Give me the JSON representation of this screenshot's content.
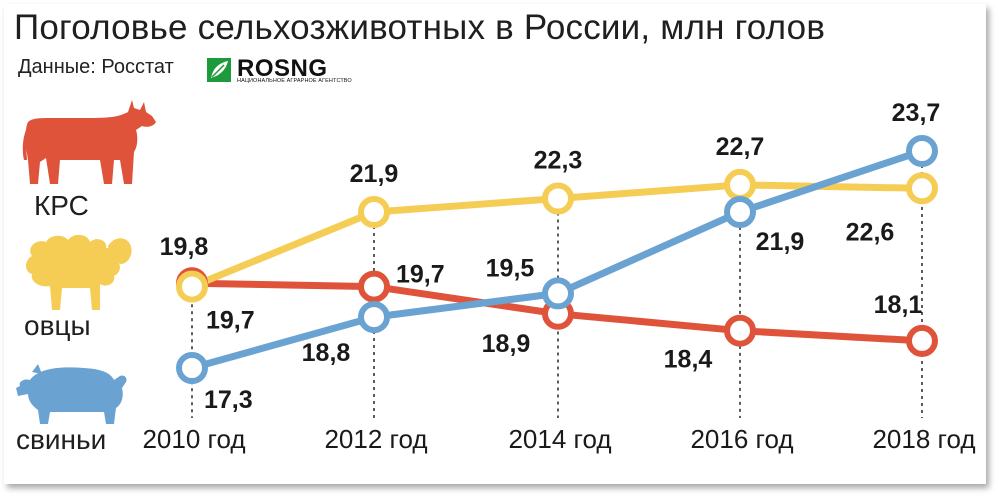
{
  "title": "Поголовье сельхозживотных в России, млн голов",
  "source": "Данные: Росстат",
  "logo": {
    "name": "ROSNG",
    "subtitle": "НАЦИОНАЛЬНОЕ АГРАРНОЕ АГЕНТСТВО"
  },
  "colors": {
    "krs": "#e0533b",
    "ovtsy": "#f5cd55",
    "svini": "#6aa3d2"
  },
  "chart_data": {
    "type": "line",
    "title": "Поголовье сельхозживотных в России, млн голов",
    "categories": [
      "2010 год",
      "2012 год",
      "2014 год",
      "2016 год",
      "2018 год"
    ],
    "ylim": [
      17,
      24
    ],
    "grid": false,
    "legend": "left (animal icons)",
    "series": [
      {
        "name": "КРС",
        "color": "#e0533b",
        "values": [
          19.8,
          19.7,
          18.9,
          18.4,
          18.1
        ],
        "labels": [
          "19,8",
          "19,7",
          "18,9",
          "18,4",
          "18,1"
        ]
      },
      {
        "name": "овцы",
        "color": "#f5cd55",
        "values": [
          19.7,
          21.9,
          22.3,
          22.7,
          22.6
        ],
        "labels": [
          "19,7",
          "21,9",
          "22,3",
          "22,7",
          "22,6"
        ]
      },
      {
        "name": "свиньи",
        "color": "#6aa3d2",
        "values": [
          17.3,
          18.8,
          19.5,
          21.9,
          23.7
        ],
        "labels": [
          "17,3",
          "18,8",
          "19,5",
          "21,9",
          "23,7"
        ]
      }
    ]
  }
}
